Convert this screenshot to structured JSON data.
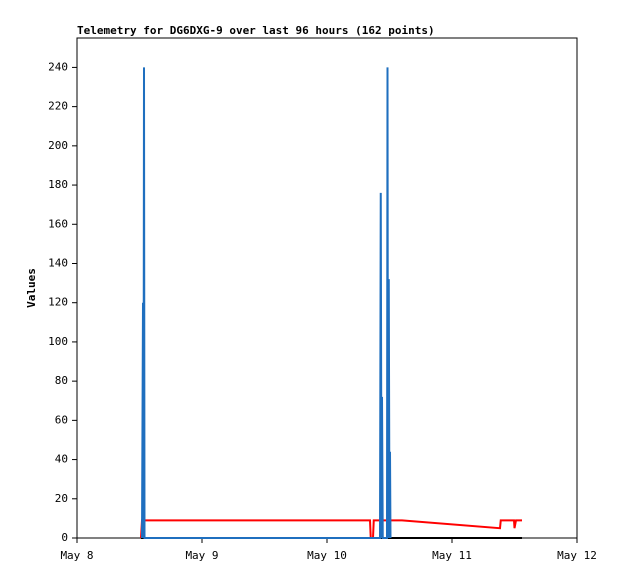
{
  "chart_data": {
    "type": "line",
    "title": "Telemetry for DG6DXG-9 over last 96 hours (162 points)",
    "y_label": "Values",
    "xlim": [
      0,
      4
    ],
    "xticks": [
      {
        "value": 0,
        "label": "May 8"
      },
      {
        "value": 1,
        "label": "May 9"
      },
      {
        "value": 2,
        "label": "May 10"
      },
      {
        "value": 3,
        "label": "May 11"
      },
      {
        "value": 4,
        "label": "May 12"
      }
    ],
    "ylim": [
      0,
      255
    ],
    "yticks": [
      0,
      20,
      40,
      60,
      80,
      100,
      120,
      140,
      160,
      180,
      200,
      220,
      240
    ],
    "series": [
      {
        "color": "#000000",
        "x": [
          0.512,
          3.56
        ],
        "values": [
          0,
          0
        ]
      },
      {
        "color": "#ff0000",
        "x": [
          0.512,
          0.52,
          2.344,
          2.35,
          2.368,
          2.374,
          2.6,
          3.384,
          3.39,
          3.496,
          3.5,
          3.512,
          3.56
        ],
        "values": [
          0,
          9,
          9,
          0,
          0,
          9,
          9,
          5,
          9,
          9,
          5,
          9,
          9
        ]
      },
      {
        "color": "#1f6fbf",
        "x": [
          0.52,
          0.528,
          0.532,
          0.536,
          0.54,
          2.424,
          2.43,
          2.436,
          2.44,
          2.446,
          2.48,
          2.484,
          2.488,
          2.494,
          2.5,
          2.504,
          2.508
        ],
        "values": [
          0,
          120,
          0,
          240,
          0,
          0,
          176,
          0,
          72,
          0,
          0,
          240,
          0,
          132,
          0,
          44,
          0
        ]
      }
    ]
  }
}
